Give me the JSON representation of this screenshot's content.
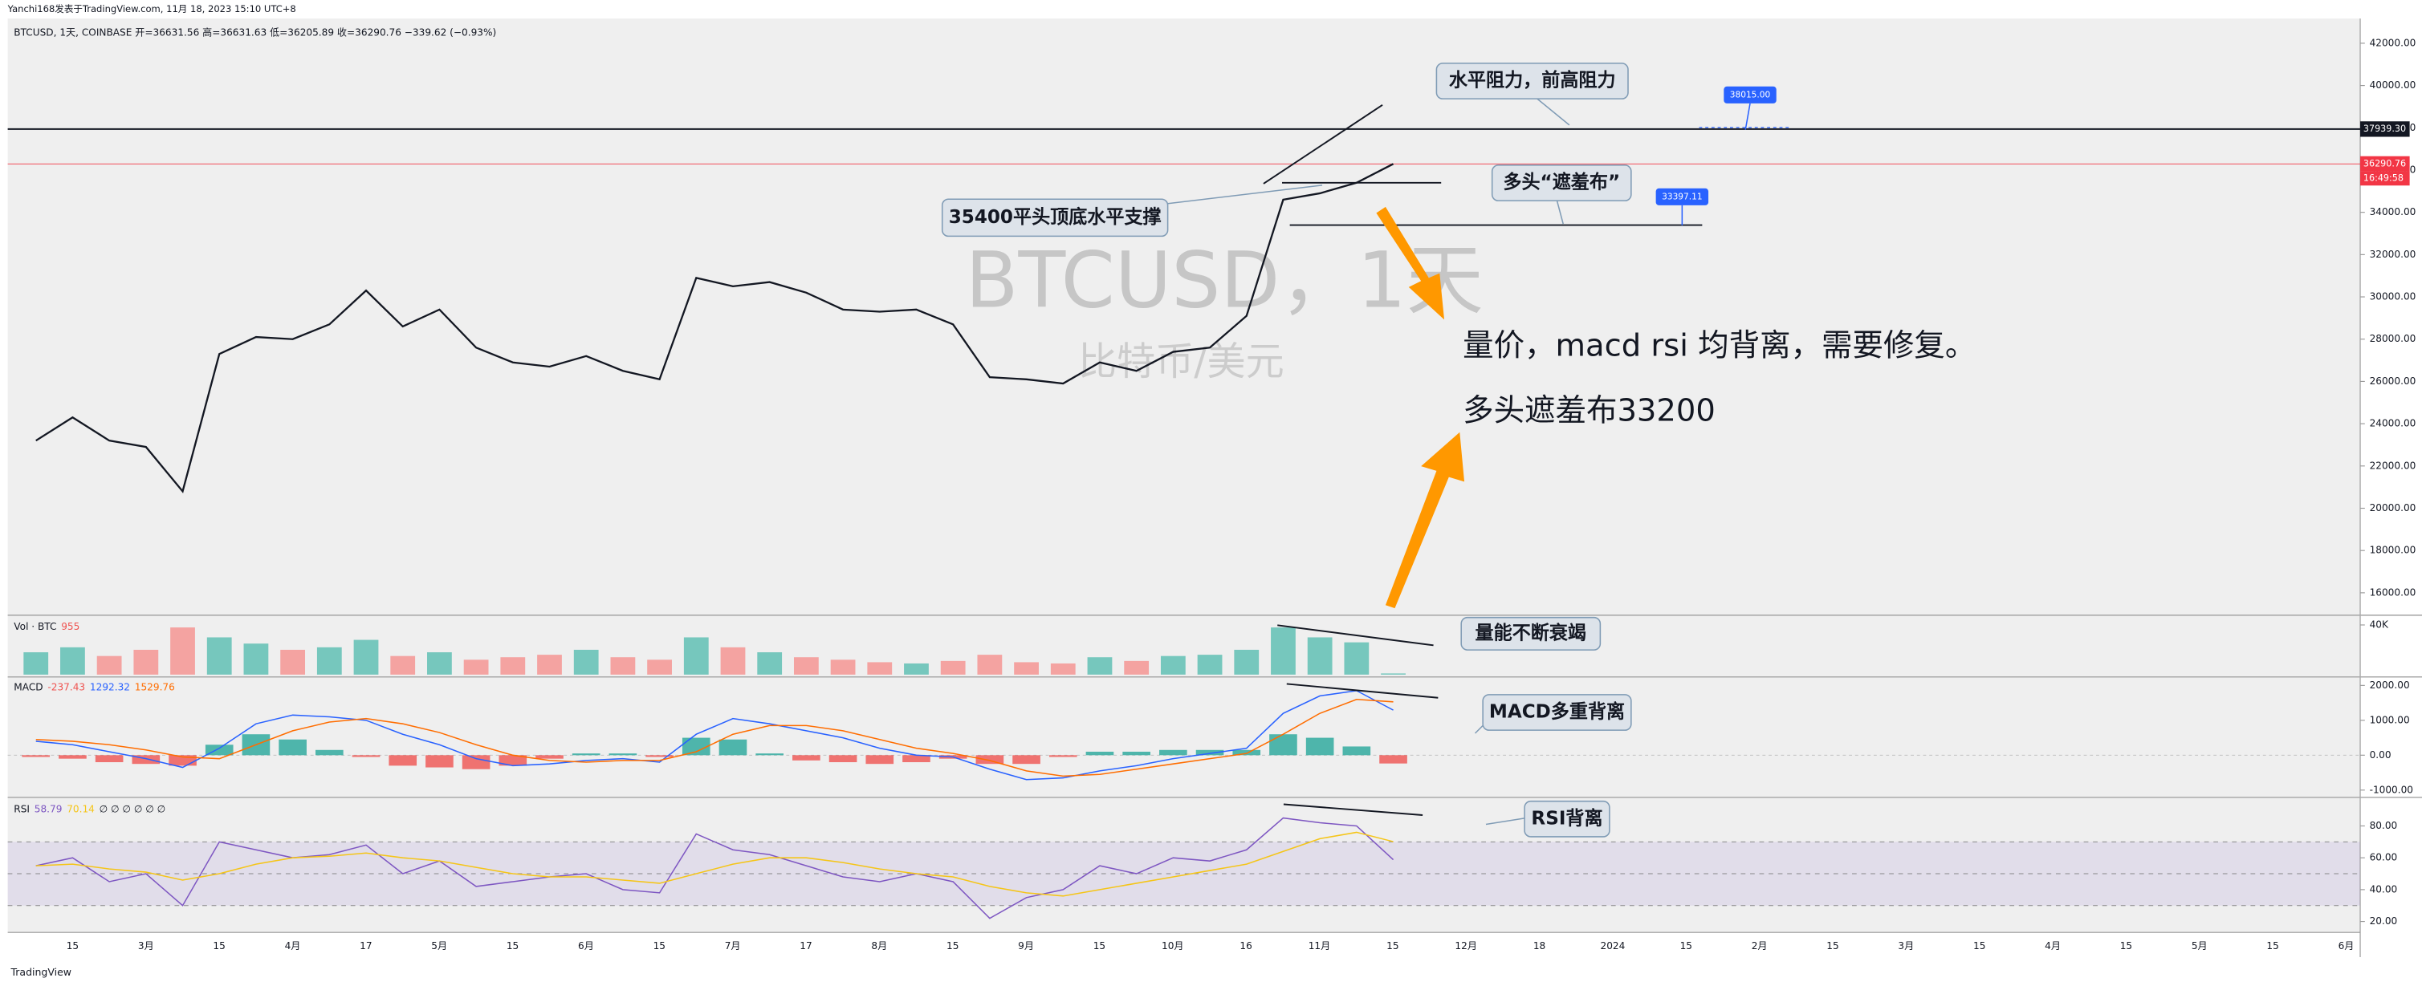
{
  "header": {
    "publisher": "Yanchi168发表于TradingView.com, 11月 18, 2023 15:10 UTC+8",
    "symbol": "BTCUSD, 1天, COINBASE",
    "ohlc": "开=36631.56 高=36631.63 低=36205.89 收=36290.76 −339.62 (−0.93%)"
  },
  "watermark": [
    "BTCUSD，1天",
    "比特币/美元"
  ],
  "time_axis": [
    "15",
    "3月",
    "15",
    "4月",
    "17",
    "5月",
    "15",
    "6月",
    "15",
    "7月",
    "17",
    "8月",
    "15",
    "9月",
    "15",
    "10月",
    "16",
    "11月",
    "15",
    "12月",
    "18",
    "2024",
    "15",
    "2月",
    "15",
    "3月",
    "15",
    "4月",
    "15",
    "5月",
    "15",
    "6月"
  ],
  "chart_data": [
    {
      "type": "line",
      "color": "#131722",
      "values": [
        23200,
        24300,
        23200,
        22900,
        20800,
        27300,
        28100,
        28000,
        28700,
        30300,
        28600,
        29400,
        27600,
        26900,
        26700,
        27200,
        26500,
        26100,
        30900,
        30500,
        30700,
        30200,
        29400,
        29300,
        29400,
        28700,
        26200,
        26100,
        25900,
        26900,
        26500,
        27400,
        27600,
        29100,
        34600,
        34900,
        35400,
        36290.76
      ],
      "ylim": [
        15050,
        42950
      ],
      "yticks": [
        {
          "value": 16000,
          "label": "16000.00"
        },
        {
          "value": 18000,
          "label": "18000.00"
        },
        {
          "value": 20000,
          "label": "20000.00"
        },
        {
          "value": 22000,
          "label": "22000.00"
        },
        {
          "value": 24000,
          "label": "24000.00"
        },
        {
          "value": 26000,
          "label": "26000.00"
        },
        {
          "value": 28000,
          "label": "28000.00"
        },
        {
          "value": 30000,
          "label": "30000.00"
        },
        {
          "value": 32000,
          "label": "32000.00"
        },
        {
          "value": 34000,
          "label": "34000.00"
        },
        {
          "value": 36000,
          "label": "36000.00"
        },
        {
          "value": 38000,
          "label": "38000.00"
        },
        {
          "value": 40000,
          "label": "40000.00"
        },
        {
          "value": 42000,
          "label": "42000.00"
        }
      ],
      "price_lines": [
        {
          "value": 37939.3,
          "label": "37939.30",
          "color": "#131722"
        },
        {
          "value": 36290.76,
          "label": "36290.76",
          "color": "#f23645"
        }
      ],
      "countdown": "16:49:58",
      "levels": [
        {
          "value": 38015,
          "label": "38015.00"
        },
        {
          "value": 33397.11,
          "label": "33397.11"
        },
        {
          "value": 35400
        }
      ]
    },
    {
      "type": "bar",
      "name": "Vol · BTC",
      "legend_value": 955,
      "values": [
        18000,
        22000,
        15000,
        20000,
        38000,
        30000,
        25000,
        20000,
        22000,
        28000,
        15000,
        18000,
        12000,
        14000,
        16000,
        20000,
        14000,
        12000,
        30000,
        22000,
        18000,
        14000,
        12000,
        10000,
        9000,
        11000,
        16000,
        10000,
        9000,
        14000,
        11000,
        15000,
        16000,
        20000,
        38000,
        30000,
        26000,
        955
      ],
      "up_color": "#76c7bd",
      "down_color": "#f4a3a1",
      "ylim": [
        0,
        46000
      ],
      "yticks": [
        {
          "value": 40000,
          "label": "40K"
        }
      ]
    },
    {
      "type": "macd",
      "name": "MACD",
      "series": [
        {
          "name": "histogram",
          "legend_value": -237.43,
          "color": "#ef5350",
          "up_color": "#26a69a",
          "values": [
            -50,
            -100,
            -200,
            -250,
            -300,
            300,
            600,
            450,
            150,
            -50,
            -300,
            -350,
            -400,
            -300,
            -100,
            50,
            50,
            -50,
            500,
            450,
            50,
            -150,
            -200,
            -250,
            -200,
            -100,
            -250,
            -250,
            -50,
            100,
            100,
            150,
            150,
            150,
            600,
            500,
            250,
            -237.43
          ]
        },
        {
          "name": "macd",
          "legend_value": 1292.32,
          "color": "#2962ff",
          "values": [
            400,
            300,
            100,
            -100,
            -350,
            200,
            900,
            1150,
            1100,
            1000,
            600,
            300,
            -100,
            -300,
            -250,
            -150,
            -100,
            -200,
            600,
            1050,
            900,
            700,
            500,
            200,
            0,
            -50,
            -400,
            -700,
            -650,
            -450,
            -300,
            -100,
            50,
            200,
            1200,
            1700,
            1850,
            1292.32
          ]
        },
        {
          "name": "signal",
          "legend_value": 1529.76,
          "color": "#ff6d00",
          "values": [
            450,
            400,
            300,
            150,
            -50,
            -100,
            300,
            700,
            950,
            1050,
            900,
            650,
            300,
            0,
            -150,
            -200,
            -150,
            -150,
            100,
            600,
            850,
            850,
            700,
            450,
            200,
            50,
            -150,
            -450,
            -600,
            -550,
            -400,
            -250,
            -100,
            50,
            600,
            1200,
            1600,
            1529.76
          ]
        }
      ],
      "ylim": [
        -1142,
        2177
      ],
      "yticks": [
        {
          "value": 2000,
          "label": "2000.00"
        },
        {
          "value": 1000,
          "label": "1000.00"
        },
        {
          "value": 0,
          "label": "0.00"
        },
        {
          "value": -1000,
          "label": "-1000.00"
        }
      ]
    },
    {
      "type": "rsi",
      "name": "RSI",
      "extra": "∅ ∅ ∅ ∅ ∅ ∅",
      "series": [
        {
          "name": "rsi",
          "legend_value": 58.79,
          "color": "#7e57c2",
          "values": [
            55,
            60,
            45,
            50,
            30,
            70,
            65,
            60,
            62,
            68,
            50,
            58,
            42,
            45,
            48,
            50,
            40,
            38,
            75,
            65,
            62,
            55,
            48,
            45,
            50,
            45,
            22,
            35,
            40,
            55,
            50,
            60,
            58,
            65,
            85,
            82,
            80,
            58.79
          ]
        },
        {
          "name": "ma",
          "legend_value": 70.14,
          "color": "#f5c518",
          "values": [
            55,
            56,
            53,
            51,
            46,
            50,
            56,
            60,
            61,
            63,
            60,
            58,
            54,
            50,
            48,
            48,
            46,
            44,
            50,
            56,
            60,
            60,
            57,
            53,
            50,
            48,
            42,
            38,
            36,
            40,
            44,
            48,
            52,
            56,
            64,
            72,
            76,
            70.14
          ]
        }
      ],
      "band": [
        30,
        70
      ],
      "midline": 50,
      "ylim": [
        17,
        96.5
      ],
      "yticks": [
        {
          "value": 80,
          "label": "80.00"
        },
        {
          "value": 60,
          "label": "60.00"
        },
        {
          "value": 40,
          "label": "40.00"
        },
        {
          "value": 20,
          "label": "20.00"
        }
      ]
    }
  ],
  "annotations": [
    "水平阻力，前高阻力",
    "多头“遮羞布”",
    "35400平头顶底水平支撑",
    "量价，macd rsi 均背离，需要修复。",
    "多头遮羞布33200",
    "量能不断衰竭",
    "MACD多重背离",
    "RSI背离"
  ],
  "footer": "TradingView"
}
